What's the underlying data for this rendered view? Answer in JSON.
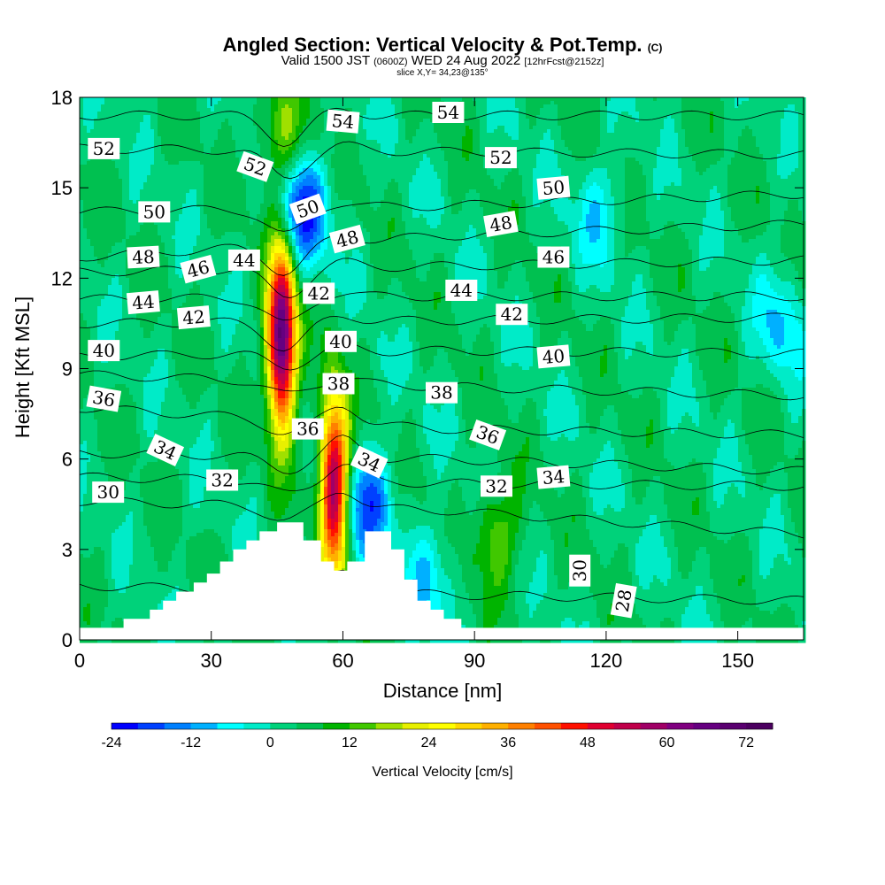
{
  "title": {
    "main": "Angled Section: Vertical Velocity & Pot.Temp.",
    "copyright": "(C)",
    "valid": "Valid 1500 JST",
    "valid_utc": "(0600Z)",
    "date": "WED 24 Aug 2022",
    "forecast": "[12hrFcst@2152z]",
    "slice": "slice X,Y= 34,23@135°"
  },
  "chart_data": {
    "type": "heatmap",
    "title": "Angled Section: Vertical Velocity & Pot.Temp.",
    "xlabel": "Distance [nm]",
    "ylabel": "Height [Kft MSL]",
    "xlim": [
      0,
      165
    ],
    "ylim": [
      0,
      18
    ],
    "x_ticks": [
      0,
      30,
      60,
      90,
      120,
      150
    ],
    "y_ticks": [
      0,
      3,
      6,
      9,
      12,
      15,
      18
    ],
    "colorbar": {
      "label": "Vertical Velocity [cm/s]",
      "min": -24,
      "max": 76,
      "step": 4,
      "tick_values": [
        -24,
        -12,
        0,
        12,
        24,
        36,
        48,
        60,
        72
      ],
      "tick_labels": [
        "-24",
        "-12",
        "0",
        "12",
        "24",
        "36",
        "48",
        "60",
        "72"
      ],
      "colors": [
        "#0000ff",
        "#0040ff",
        "#0080ff",
        "#00b0ff",
        "#00ffff",
        "#00ebc8",
        "#00d27a",
        "#00c050",
        "#00b400",
        "#40c800",
        "#a0e000",
        "#e8f000",
        "#ffff00",
        "#ffd800",
        "#ffb000",
        "#ff8000",
        "#ff5000",
        "#ff1000",
        "#e00030",
        "#c0004a",
        "#a00066",
        "#800080",
        "#660080",
        "#5a0070",
        "#4c0060"
      ]
    },
    "terrain": [
      [
        0,
        0.4
      ],
      [
        10,
        0.4
      ],
      [
        10,
        0.7
      ],
      [
        16,
        0.7
      ],
      [
        16,
        1.0
      ],
      [
        19,
        1.0
      ],
      [
        19,
        1.3
      ],
      [
        22,
        1.3
      ],
      [
        22,
        1.6
      ],
      [
        26,
        1.6
      ],
      [
        26,
        1.9
      ],
      [
        29,
        1.9
      ],
      [
        29,
        2.2
      ],
      [
        32,
        2.2
      ],
      [
        32,
        2.6
      ],
      [
        35,
        2.6
      ],
      [
        35,
        3.0
      ],
      [
        38,
        3.0
      ],
      [
        38,
        3.3
      ],
      [
        41,
        3.3
      ],
      [
        41,
        3.6
      ],
      [
        45,
        3.6
      ],
      [
        45,
        3.9
      ],
      [
        51,
        3.9
      ],
      [
        51,
        3.3
      ],
      [
        55,
        3.3
      ],
      [
        55,
        2.6
      ],
      [
        58,
        2.6
      ],
      [
        58,
        2.3
      ],
      [
        61,
        2.3
      ],
      [
        61,
        2.6
      ],
      [
        65,
        2.6
      ],
      [
        65,
        3.6
      ],
      [
        71,
        3.6
      ],
      [
        71,
        3.0
      ],
      [
        74,
        3.0
      ],
      [
        74,
        2.0
      ],
      [
        77,
        2.0
      ],
      [
        77,
        1.3
      ],
      [
        80,
        1.3
      ],
      [
        80,
        1.0
      ],
      [
        83,
        1.0
      ],
      [
        83,
        0.7
      ],
      [
        87,
        0.7
      ],
      [
        87,
        0.4
      ],
      [
        165,
        0.4
      ]
    ],
    "velocity_features": [
      {
        "kind": "updraft",
        "x": 46,
        "y": 10.0,
        "peak": 72
      },
      {
        "kind": "updraft",
        "x": 58,
        "y": 5.2,
        "peak": 60
      },
      {
        "kind": "updraft",
        "x": 46,
        "y": 16.8,
        "peak": 16
      },
      {
        "kind": "updraft",
        "x": 95,
        "y": 3.5,
        "peak": 16
      },
      {
        "kind": "downdraft",
        "x": 51,
        "y": 14.2,
        "peak": -20
      },
      {
        "kind": "downdraft",
        "x": 66,
        "y": 4.5,
        "peak": -16
      },
      {
        "kind": "downdraft",
        "x": 80,
        "y": 2.0,
        "peak": -8
      },
      {
        "kind": "downdraft",
        "x": 160,
        "y": 10.5,
        "peak": -8
      },
      {
        "kind": "downdraft",
        "x": 118,
        "y": 14.2,
        "peak": -6
      }
    ],
    "pot_temp_contours": [
      {
        "value": 28,
        "levels": [
          1.8,
          1.5,
          1.3
        ]
      },
      {
        "value": 30,
        "levels": [
          4.6,
          4.3,
          3.5
        ]
      },
      {
        "value": 32,
        "levels": [
          5.4,
          5.2,
          5.1
        ]
      },
      {
        "value": 34,
        "levels": [
          6.2,
          6.0,
          5.6
        ]
      },
      {
        "value": 36,
        "levels": [
          7.7,
          7.0,
          6.8
        ]
      },
      {
        "value": 38,
        "levels": [
          8.8,
          8.4,
          8.1
        ]
      },
      {
        "value": 40,
        "levels": [
          9.4,
          9.6,
          9.5
        ]
      },
      {
        "value": 42,
        "levels": [
          10.5,
          10.6,
          10.7
        ]
      },
      {
        "value": 44,
        "levels": [
          11.3,
          11.4,
          11.4
        ]
      },
      {
        "value": 46,
        "levels": [
          12.2,
          12.4,
          12.6
        ]
      },
      {
        "value": 48,
        "levels": [
          12.7,
          13.4,
          13.8
        ]
      },
      {
        "value": 50,
        "levels": [
          14.2,
          14.4,
          14.8
        ]
      },
      {
        "value": 52,
        "levels": [
          16.3,
          16.2,
          16.1
        ]
      },
      {
        "value": 54,
        "levels": [
          17.4,
          17.4,
          17.4
        ]
      }
    ],
    "contour_labels": [
      {
        "text": "52",
        "x": 5.5,
        "y": 16.3,
        "rot": 0
      },
      {
        "text": "54",
        "x": 60,
        "y": 17.2,
        "rot": 5
      },
      {
        "text": "54",
        "x": 84,
        "y": 17.5,
        "rot": 0
      },
      {
        "text": "52",
        "x": 40,
        "y": 15.7,
        "rot": 20
      },
      {
        "text": "52",
        "x": 96,
        "y": 16.0,
        "rot": 0
      },
      {
        "text": "50",
        "x": 17,
        "y": 14.2,
        "rot": 0
      },
      {
        "text": "50",
        "x": 52,
        "y": 14.3,
        "rot": -20
      },
      {
        "text": "50",
        "x": 108,
        "y": 15.0,
        "rot": -5
      },
      {
        "text": "48",
        "x": 14.5,
        "y": 12.7,
        "rot": -3
      },
      {
        "text": "48",
        "x": 61,
        "y": 13.3,
        "rot": -15
      },
      {
        "text": "48",
        "x": 96,
        "y": 13.8,
        "rot": -10
      },
      {
        "text": "46",
        "x": 27,
        "y": 12.3,
        "rot": -15
      },
      {
        "text": "44",
        "x": 37.5,
        "y": 12.6,
        "rot": 0
      },
      {
        "text": "46",
        "x": 108,
        "y": 12.7,
        "rot": 0
      },
      {
        "text": "44",
        "x": 14.5,
        "y": 11.2,
        "rot": -5
      },
      {
        "text": "42",
        "x": 54.5,
        "y": 11.5,
        "rot": 0
      },
      {
        "text": "44",
        "x": 87,
        "y": 11.6,
        "rot": 0
      },
      {
        "text": "42",
        "x": 26,
        "y": 10.7,
        "rot": -5
      },
      {
        "text": "42",
        "x": 98.5,
        "y": 10.8,
        "rot": 0
      },
      {
        "text": "40",
        "x": 5.5,
        "y": 9.6,
        "rot": 0
      },
      {
        "text": "40",
        "x": 59.5,
        "y": 9.9,
        "rot": 0
      },
      {
        "text": "40",
        "x": 108,
        "y": 9.4,
        "rot": -5
      },
      {
        "text": "38",
        "x": 59,
        "y": 8.5,
        "rot": 0
      },
      {
        "text": "38",
        "x": 82.5,
        "y": 8.2,
        "rot": 0
      },
      {
        "text": "36",
        "x": 5.5,
        "y": 8.0,
        "rot": 10
      },
      {
        "text": "36",
        "x": 52,
        "y": 7.0,
        "rot": 0
      },
      {
        "text": "36",
        "x": 93,
        "y": 6.8,
        "rot": 20
      },
      {
        "text": "34",
        "x": 19.5,
        "y": 6.3,
        "rot": 25
      },
      {
        "text": "34",
        "x": 66,
        "y": 5.9,
        "rot": 25
      },
      {
        "text": "34",
        "x": 108,
        "y": 5.4,
        "rot": -5
      },
      {
        "text": "32",
        "x": 32.5,
        "y": 5.3,
        "rot": 0
      },
      {
        "text": "32",
        "x": 95,
        "y": 5.1,
        "rot": 0
      },
      {
        "text": "30",
        "x": 6.5,
        "y": 4.9,
        "rot": 0
      },
      {
        "text": "30",
        "x": 114,
        "y": 2.3,
        "rot": -90
      },
      {
        "text": "28",
        "x": 124,
        "y": 1.3,
        "rot": -80
      }
    ]
  }
}
